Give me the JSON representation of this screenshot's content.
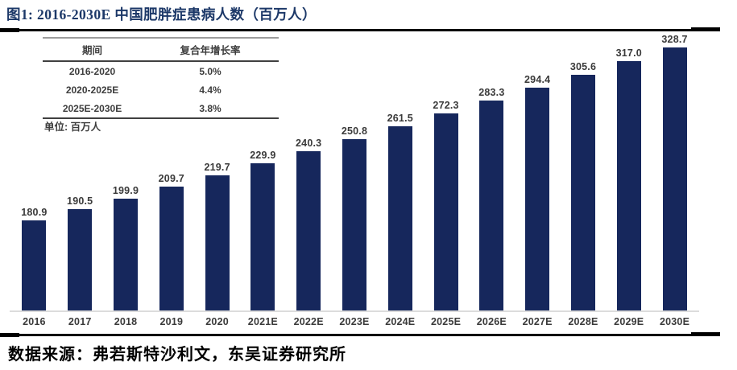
{
  "header": {
    "title": "图1:  2016-2030E 中国肥胖症患病人数（百万人）"
  },
  "cagr_table": {
    "headers": [
      "期间",
      "复合年增长率"
    ],
    "rows": [
      {
        "period": "2016-2020",
        "cagr": "5.0%"
      },
      {
        "period": "2020-2025E",
        "cagr": "4.4%"
      },
      {
        "period": "2025E-2030E",
        "cagr": "3.8%"
      }
    ]
  },
  "unit_label": "单位: 百万人",
  "chart_data": {
    "type": "bar",
    "title": "2016-2030E 中国肥胖症患病人数（百万人）",
    "categories": [
      "2016",
      "2017",
      "2018",
      "2019",
      "2020",
      "2021E",
      "2022E",
      "2023E",
      "2024E",
      "2025E",
      "2026E",
      "2027E",
      "2028E",
      "2029E",
      "2030E"
    ],
    "values": [
      180.9,
      190.5,
      199.9,
      209.7,
      219.7,
      229.9,
      240.3,
      250.8,
      261.5,
      272.3,
      283.3,
      294.4,
      305.6,
      317.0,
      328.7
    ],
    "xlabel": "",
    "ylabel": "百万人",
    "ylim": [
      104,
      342
    ],
    "grid": false,
    "legend": "none",
    "bar_color": "#16275c",
    "label_color": "#3a3a3a",
    "axis_color": "#dcdcdc"
  },
  "footer": {
    "source": "数据来源：弗若斯特沙利文，东吴证券研究所"
  },
  "colors": {
    "title_navy": "#1c3868",
    "rule_black": "#000000"
  }
}
